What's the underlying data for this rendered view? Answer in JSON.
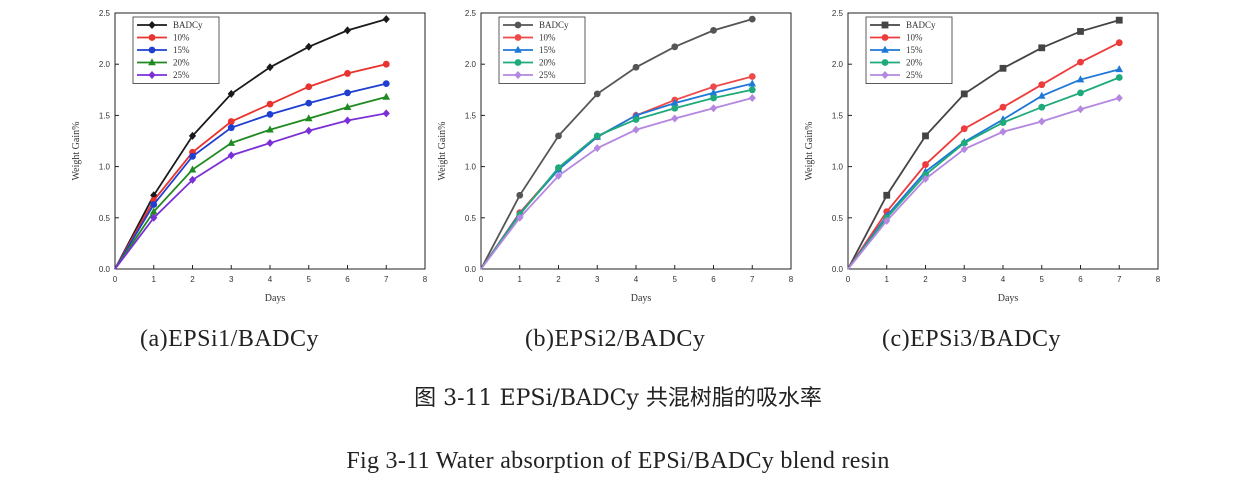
{
  "chart_data": [
    {
      "type": "line",
      "panel": "a",
      "caption": "(a)EPSi1/BADCy",
      "xlabel": "Days",
      "ylabel": "Weight Gain%",
      "xlim": [
        0,
        8
      ],
      "ylim": [
        0,
        2.5
      ],
      "xticks": [
        "0",
        "1",
        "2",
        "3",
        "4",
        "5",
        "6",
        "7",
        "8"
      ],
      "yticks": [
        "0.0",
        "0.5",
        "1.0",
        "1.5",
        "2.0",
        "2.5"
      ],
      "legend_position": "top-left",
      "x": [
        0,
        1,
        2,
        3,
        4,
        5,
        6,
        7
      ],
      "series": [
        {
          "name": "BADCy",
          "color": "#1a1a1a",
          "marker": "diamond",
          "values": [
            0,
            0.72,
            1.3,
            1.71,
            1.97,
            2.17,
            2.33,
            2.44
          ]
        },
        {
          "name": "10%",
          "color": "#e8332e",
          "marker": "circle",
          "values": [
            0,
            0.67,
            1.14,
            1.44,
            1.61,
            1.78,
            1.91,
            2.0
          ]
        },
        {
          "name": "15%",
          "color": "#1f3fd1",
          "marker": "circle",
          "values": [
            0,
            0.63,
            1.1,
            1.38,
            1.51,
            1.62,
            1.72,
            1.81
          ]
        },
        {
          "name": "20%",
          "color": "#1f8a1f",
          "marker": "triangle",
          "values": [
            0,
            0.56,
            0.97,
            1.23,
            1.36,
            1.47,
            1.58,
            1.68
          ]
        },
        {
          "name": "25%",
          "color": "#7b2fd6",
          "marker": "diamond",
          "values": [
            0,
            0.5,
            0.87,
            1.11,
            1.23,
            1.35,
            1.45,
            1.52
          ]
        }
      ]
    },
    {
      "type": "line",
      "panel": "b",
      "caption": "(b)EPSi2/BADCy",
      "xlabel": "Days",
      "ylabel": "Weight Gain%",
      "xlim": [
        0,
        8
      ],
      "ylim": [
        0,
        2.5
      ],
      "xticks": [
        "0",
        "1",
        "2",
        "3",
        "4",
        "5",
        "6",
        "7",
        "8"
      ],
      "yticks": [
        "0.0",
        "0.5",
        "1.0",
        "1.5",
        "2.0",
        "2.5"
      ],
      "legend_position": "top-left",
      "x": [
        0,
        1,
        2,
        3,
        4,
        5,
        6,
        7
      ],
      "series": [
        {
          "name": "BADCy",
          "color": "#555555",
          "marker": "circle",
          "values": [
            0,
            0.72,
            1.3,
            1.71,
            1.97,
            2.17,
            2.33,
            2.44
          ]
        },
        {
          "name": "10%",
          "color": "#ee4a4a",
          "marker": "circle",
          "values": [
            0,
            0.55,
            0.98,
            1.29,
            1.5,
            1.65,
            1.78,
            1.88
          ]
        },
        {
          "name": "15%",
          "color": "#1e78d8",
          "marker": "triangle",
          "values": [
            0,
            0.54,
            0.97,
            1.29,
            1.5,
            1.62,
            1.72,
            1.81
          ]
        },
        {
          "name": "20%",
          "color": "#1faa7a",
          "marker": "circle",
          "values": [
            0,
            0.53,
            0.99,
            1.3,
            1.46,
            1.57,
            1.67,
            1.75
          ]
        },
        {
          "name": "25%",
          "color": "#b487e0",
          "marker": "diamond",
          "values": [
            0,
            0.5,
            0.91,
            1.18,
            1.36,
            1.47,
            1.57,
            1.67
          ]
        }
      ]
    },
    {
      "type": "line",
      "panel": "c",
      "caption": "(c)EPSi3/BADCy",
      "xlabel": "Days",
      "ylabel": "Weight Gain%",
      "xlim": [
        0,
        8
      ],
      "ylim": [
        0,
        2.5
      ],
      "xticks": [
        "0",
        "1",
        "2",
        "3",
        "4",
        "5",
        "6",
        "7",
        "8"
      ],
      "yticks": [
        "0.0",
        "0.5",
        "1.0",
        "1.5",
        "2.0",
        "2.5"
      ],
      "legend_position": "top-left",
      "x": [
        0,
        1,
        2,
        3,
        4,
        5,
        6,
        7
      ],
      "series": [
        {
          "name": "BADCy",
          "color": "#444444",
          "marker": "square",
          "values": [
            0,
            0.72,
            1.3,
            1.71,
            1.96,
            2.16,
            2.32,
            2.43
          ]
        },
        {
          "name": "10%",
          "color": "#ee3b3b",
          "marker": "circle",
          "values": [
            0,
            0.56,
            1.02,
            1.37,
            1.58,
            1.8,
            2.02,
            2.21
          ]
        },
        {
          "name": "15%",
          "color": "#1e78d8",
          "marker": "triangle",
          "values": [
            0,
            0.52,
            0.95,
            1.24,
            1.46,
            1.69,
            1.85,
            1.95
          ]
        },
        {
          "name": "20%",
          "color": "#1faa7a",
          "marker": "circle",
          "values": [
            0,
            0.5,
            0.92,
            1.23,
            1.43,
            1.58,
            1.72,
            1.87
          ]
        },
        {
          "name": "25%",
          "color": "#b487e0",
          "marker": "diamond",
          "values": [
            0,
            0.47,
            0.88,
            1.17,
            1.34,
            1.44,
            1.56,
            1.67
          ]
        }
      ]
    }
  ],
  "captions": {
    "fig_zh": "图 3-11 EPSi/BADCy 共混树脂的吸水率",
    "fig_en": "Fig 3-11 Water absorption of EPSi/BADCy blend resin"
  }
}
